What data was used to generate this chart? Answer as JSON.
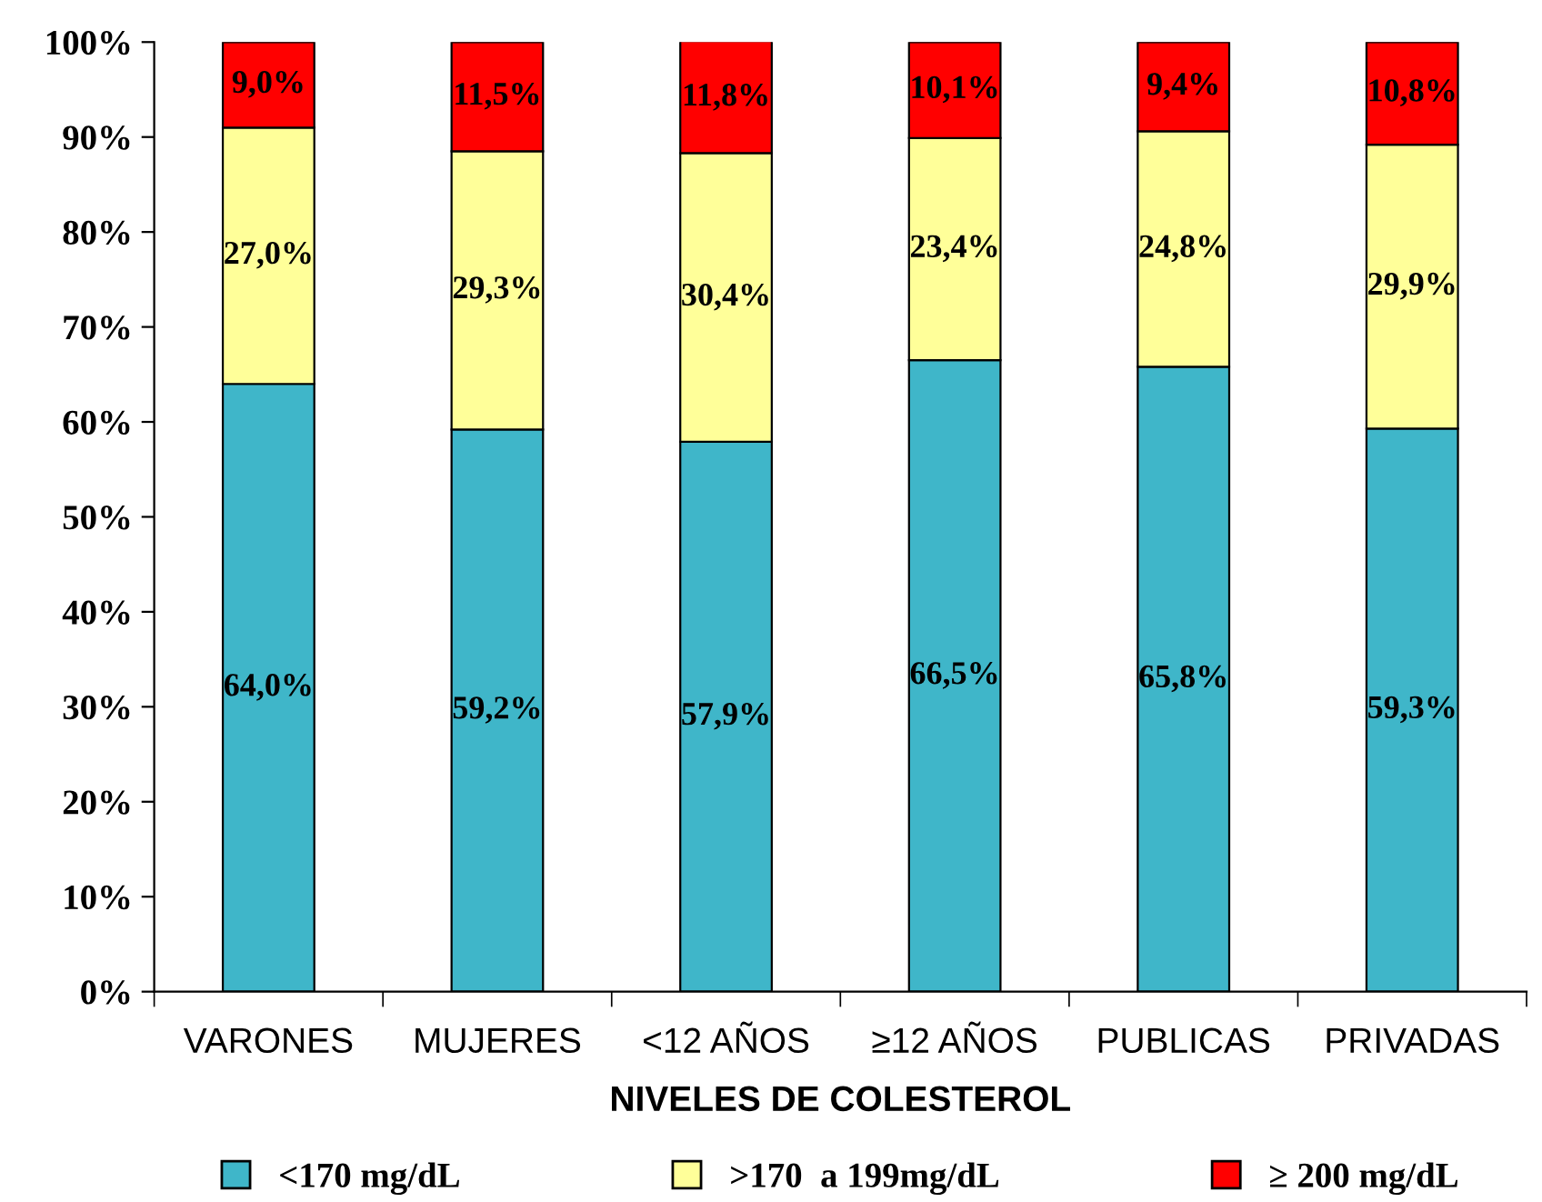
{
  "chart_data": {
    "type": "bar",
    "stacked": true,
    "xlabel": "NIVELES DE COLESTEROL",
    "categories": [
      "VARONES",
      "MUJERES",
      "<12 AÑOS",
      "≥12 AÑOS",
      "PUBLICAS",
      "PRIVADAS"
    ],
    "series": [
      {
        "name": "<170 mg/dL",
        "color": "#3fb6c9",
        "values": [
          64.0,
          59.2,
          57.9,
          66.5,
          65.8,
          59.3
        ],
        "value_labels": [
          "64,0%",
          "59,2%",
          "57,9%",
          "66,5%",
          "65,8%",
          "59,3%"
        ]
      },
      {
        "name": ">170  a 199mg/dL",
        "color": "#ffff99",
        "values": [
          27.0,
          29.3,
          30.4,
          23.4,
          24.8,
          29.9
        ],
        "value_labels": [
          "27,0%",
          "29,3%",
          "30,4%",
          "23,4%",
          "24,8%",
          "29,9%"
        ]
      },
      {
        "name": "≥ 200 mg/dL",
        "color": "#ff0000",
        "values": [
          9.0,
          11.5,
          11.8,
          10.1,
          9.4,
          10.8
        ],
        "value_labels": [
          "9,0%",
          "11,5%",
          "11,8%",
          "10,1%",
          "9,4%",
          "10,8%"
        ]
      }
    ],
    "ylim": [
      0,
      100
    ],
    "yticks": [
      {
        "value": 0,
        "label": "0%"
      },
      {
        "value": 10,
        "label": "10%"
      },
      {
        "value": 20,
        "label": "20%"
      },
      {
        "value": 30,
        "label": "30%"
      },
      {
        "value": 40,
        "label": "40%"
      },
      {
        "value": 50,
        "label": "50%"
      },
      {
        "value": 60,
        "label": "60%"
      },
      {
        "value": 70,
        "label": "70%"
      },
      {
        "value": 80,
        "label": "80%"
      },
      {
        "value": 90,
        "label": "90%"
      },
      {
        "value": 100,
        "label": "100%"
      }
    ],
    "grid": false,
    "legend": "bottom"
  }
}
